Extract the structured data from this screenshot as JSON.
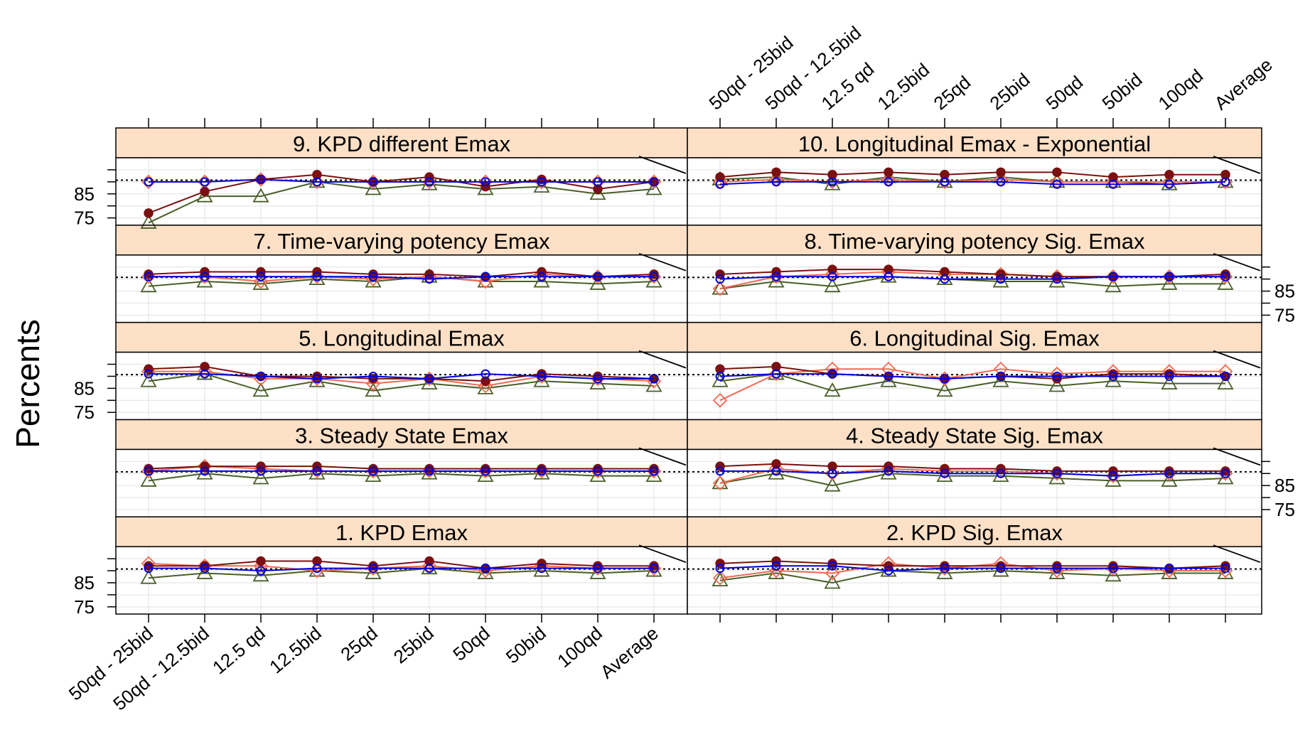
{
  "chart_data": {
    "type": "line",
    "ylabel": "Percents",
    "ylim": [
      72,
      100
    ],
    "yticks": [
      85,
      75
    ],
    "reference_line": 90.7,
    "grid": true,
    "categories": [
      "50qd - 25bid",
      "50qd - 12.5bid",
      "12.5 qd",
      "12.5bid",
      "25qd",
      "25bid",
      "50qd",
      "50bid",
      "100qd",
      "Average"
    ],
    "colors": {
      "series1": "#7a1010",
      "series2": "#f06a50",
      "series3": "#4a5e28",
      "series4": "#0000dd",
      "strip": "#fde0c6",
      "grid": "#e6e6e6"
    },
    "panels": [
      {
        "title": "1. KPD Emax",
        "series": [
          {
            "values": [
              92,
              92,
              94,
              94,
              92,
              94,
              91,
              93,
              92,
              92
            ]
          },
          {
            "values": [
              93,
              92,
              92,
              90,
              91,
              92,
              90,
              92,
              91,
              91
            ]
          },
          {
            "values": [
              87,
              89,
              88,
              90,
              89,
              91,
              89,
              90,
              89,
              90
            ]
          },
          {
            "values": [
              91,
              91,
              90,
              91,
              91,
              91,
              91,
              91,
              91,
              91
            ]
          }
        ]
      },
      {
        "title": "2. KPD Sig. Emax",
        "series": [
          {
            "values": [
              93,
              94,
              93,
              92,
              92,
              92,
              92,
              92,
              91,
              92
            ]
          },
          {
            "values": [
              87,
              90,
              89,
              93,
              91,
              93,
              90,
              91,
              90,
              90
            ]
          },
          {
            "values": [
              86,
              89,
              85,
              90,
              89,
              90,
              89,
              88,
              89,
              89
            ]
          },
          {
            "values": [
              91,
              92,
              92,
              90,
              91,
              91,
              91,
              91,
              91,
              91
            ]
          }
        ]
      },
      {
        "title": "3. Steady State Emax",
        "series": [
          {
            "values": [
              92,
              93,
              93,
              93,
              92,
              92,
              92,
              92,
              92,
              92
            ]
          },
          {
            "values": [
              91,
              93,
              92,
              91,
              91,
              91,
              91,
              91,
              91,
              91
            ]
          },
          {
            "values": [
              87,
              90,
              88,
              90,
              89,
              90,
              89,
              90,
              89,
              89
            ]
          },
          {
            "values": [
              91,
              91,
              91,
              91,
              91,
              91,
              91,
              91,
              91,
              91
            ]
          }
        ]
      },
      {
        "title": "4. Steady State Sig. Emax",
        "series": [
          {
            "values": [
              93,
              94,
              93,
              93,
              92,
              92,
              91,
              91,
              91,
              91
            ]
          },
          {
            "values": [
              86,
              92,
              90,
              92,
              91,
              91,
              90,
              89,
              90,
              90
            ]
          },
          {
            "values": [
              86,
              90,
              85,
              90,
              89,
              89,
              88,
              87,
              87,
              88
            ]
          },
          {
            "values": [
              91,
              91,
              90,
              91,
              90,
              90,
              90,
              89,
              90,
              90
            ]
          }
        ]
      },
      {
        "title": "5. Longitudinal Emax",
        "series": [
          {
            "values": [
              93,
              94,
              90,
              90,
              89,
              89,
              88,
              91,
              90,
              89
            ]
          },
          {
            "values": [
              92,
              92,
              89,
              89,
              87,
              89,
              86,
              90,
              89,
              88
            ]
          },
          {
            "values": [
              88,
              91,
              84,
              88,
              84,
              87,
              85,
              88,
              87,
              86
            ]
          },
          {
            "values": [
              91,
              91,
              90,
              89,
              90,
              89,
              91,
              90,
              89,
              89
            ]
          }
        ]
      },
      {
        "title": "6. Longitudinal Sig. Emax",
        "series": [
          {
            "values": [
              93,
              94,
              91,
              90,
              89,
              90,
              89,
              91,
              91,
              90
            ]
          },
          {
            "values": [
              80,
              91,
              93,
              93,
              89,
              93,
              91,
              92,
              92,
              92
            ]
          },
          {
            "values": [
              88,
              91,
              84,
              88,
              84,
              88,
              86,
              88,
              87,
              87
            ]
          },
          {
            "values": [
              90,
              91,
              91,
              90,
              89,
              90,
              90,
              90,
              90,
              90
            ]
          }
        ]
      },
      {
        "title": "7. Time-varying potency Emax",
        "series": [
          {
            "values": [
              92,
              93,
              93,
              93,
              92,
              92,
              91,
              93,
              91,
              92
            ]
          },
          {
            "values": [
              91,
              91,
              89,
              91,
              90,
              91,
              89,
              92,
              91,
              91
            ]
          },
          {
            "values": [
              87,
              89,
              88,
              90,
              89,
              91,
              89,
              89,
              88,
              89
            ]
          },
          {
            "values": [
              91,
              91,
              91,
              91,
              91,
              90,
              91,
              91,
              91,
              91
            ]
          }
        ]
      },
      {
        "title": "8. Time-varying potency Sig. Emax",
        "series": [
          {
            "values": [
              92,
              93,
              94,
              94,
              93,
              92,
              91,
              91,
              91,
              92
            ]
          },
          {
            "values": [
              86,
              91,
              92,
              93,
              92,
              92,
              91,
              91,
              91,
              91
            ]
          },
          {
            "values": [
              86,
              89,
              87,
              91,
              90,
              89,
              89,
              87,
              88,
              88
            ]
          },
          {
            "values": [
              90,
              91,
              91,
              91,
              90,
              90,
              90,
              91,
              91,
              91
            ]
          }
        ]
      },
      {
        "title": "9. KPD different Emax",
        "series": [
          {
            "values": [
              77,
              86,
              91,
              93,
              90,
              92,
              88,
              91,
              87,
              90
            ]
          },
          {
            "values": [
              90,
              90,
              91,
              90,
              90,
              90,
              90,
              90,
              90,
              90
            ]
          },
          {
            "values": [
              73,
              84,
              84,
              90,
              87,
              89,
              87,
              88,
              85,
              87
            ]
          },
          {
            "values": [
              90,
              90,
              91,
              90,
              90,
              90,
              90,
              90,
              90,
              90
            ]
          }
        ]
      },
      {
        "title": "10. Longitudinal Emax - Exponential",
        "series": [
          {
            "values": [
              92,
              94,
              93,
              94,
              93,
              94,
              94,
              92,
              93,
              93
            ]
          },
          {
            "values": [
              90,
              91,
              90,
              91,
              90,
              91,
              90,
              90,
              90,
              90
            ]
          },
          {
            "values": [
              91,
              92,
              89,
              92,
              90,
              92,
              90,
              90,
              89,
              90
            ]
          },
          {
            "values": [
              89,
              90,
              90,
              90,
              90,
              90,
              89,
              89,
              89,
              90
            ]
          }
        ]
      }
    ]
  }
}
